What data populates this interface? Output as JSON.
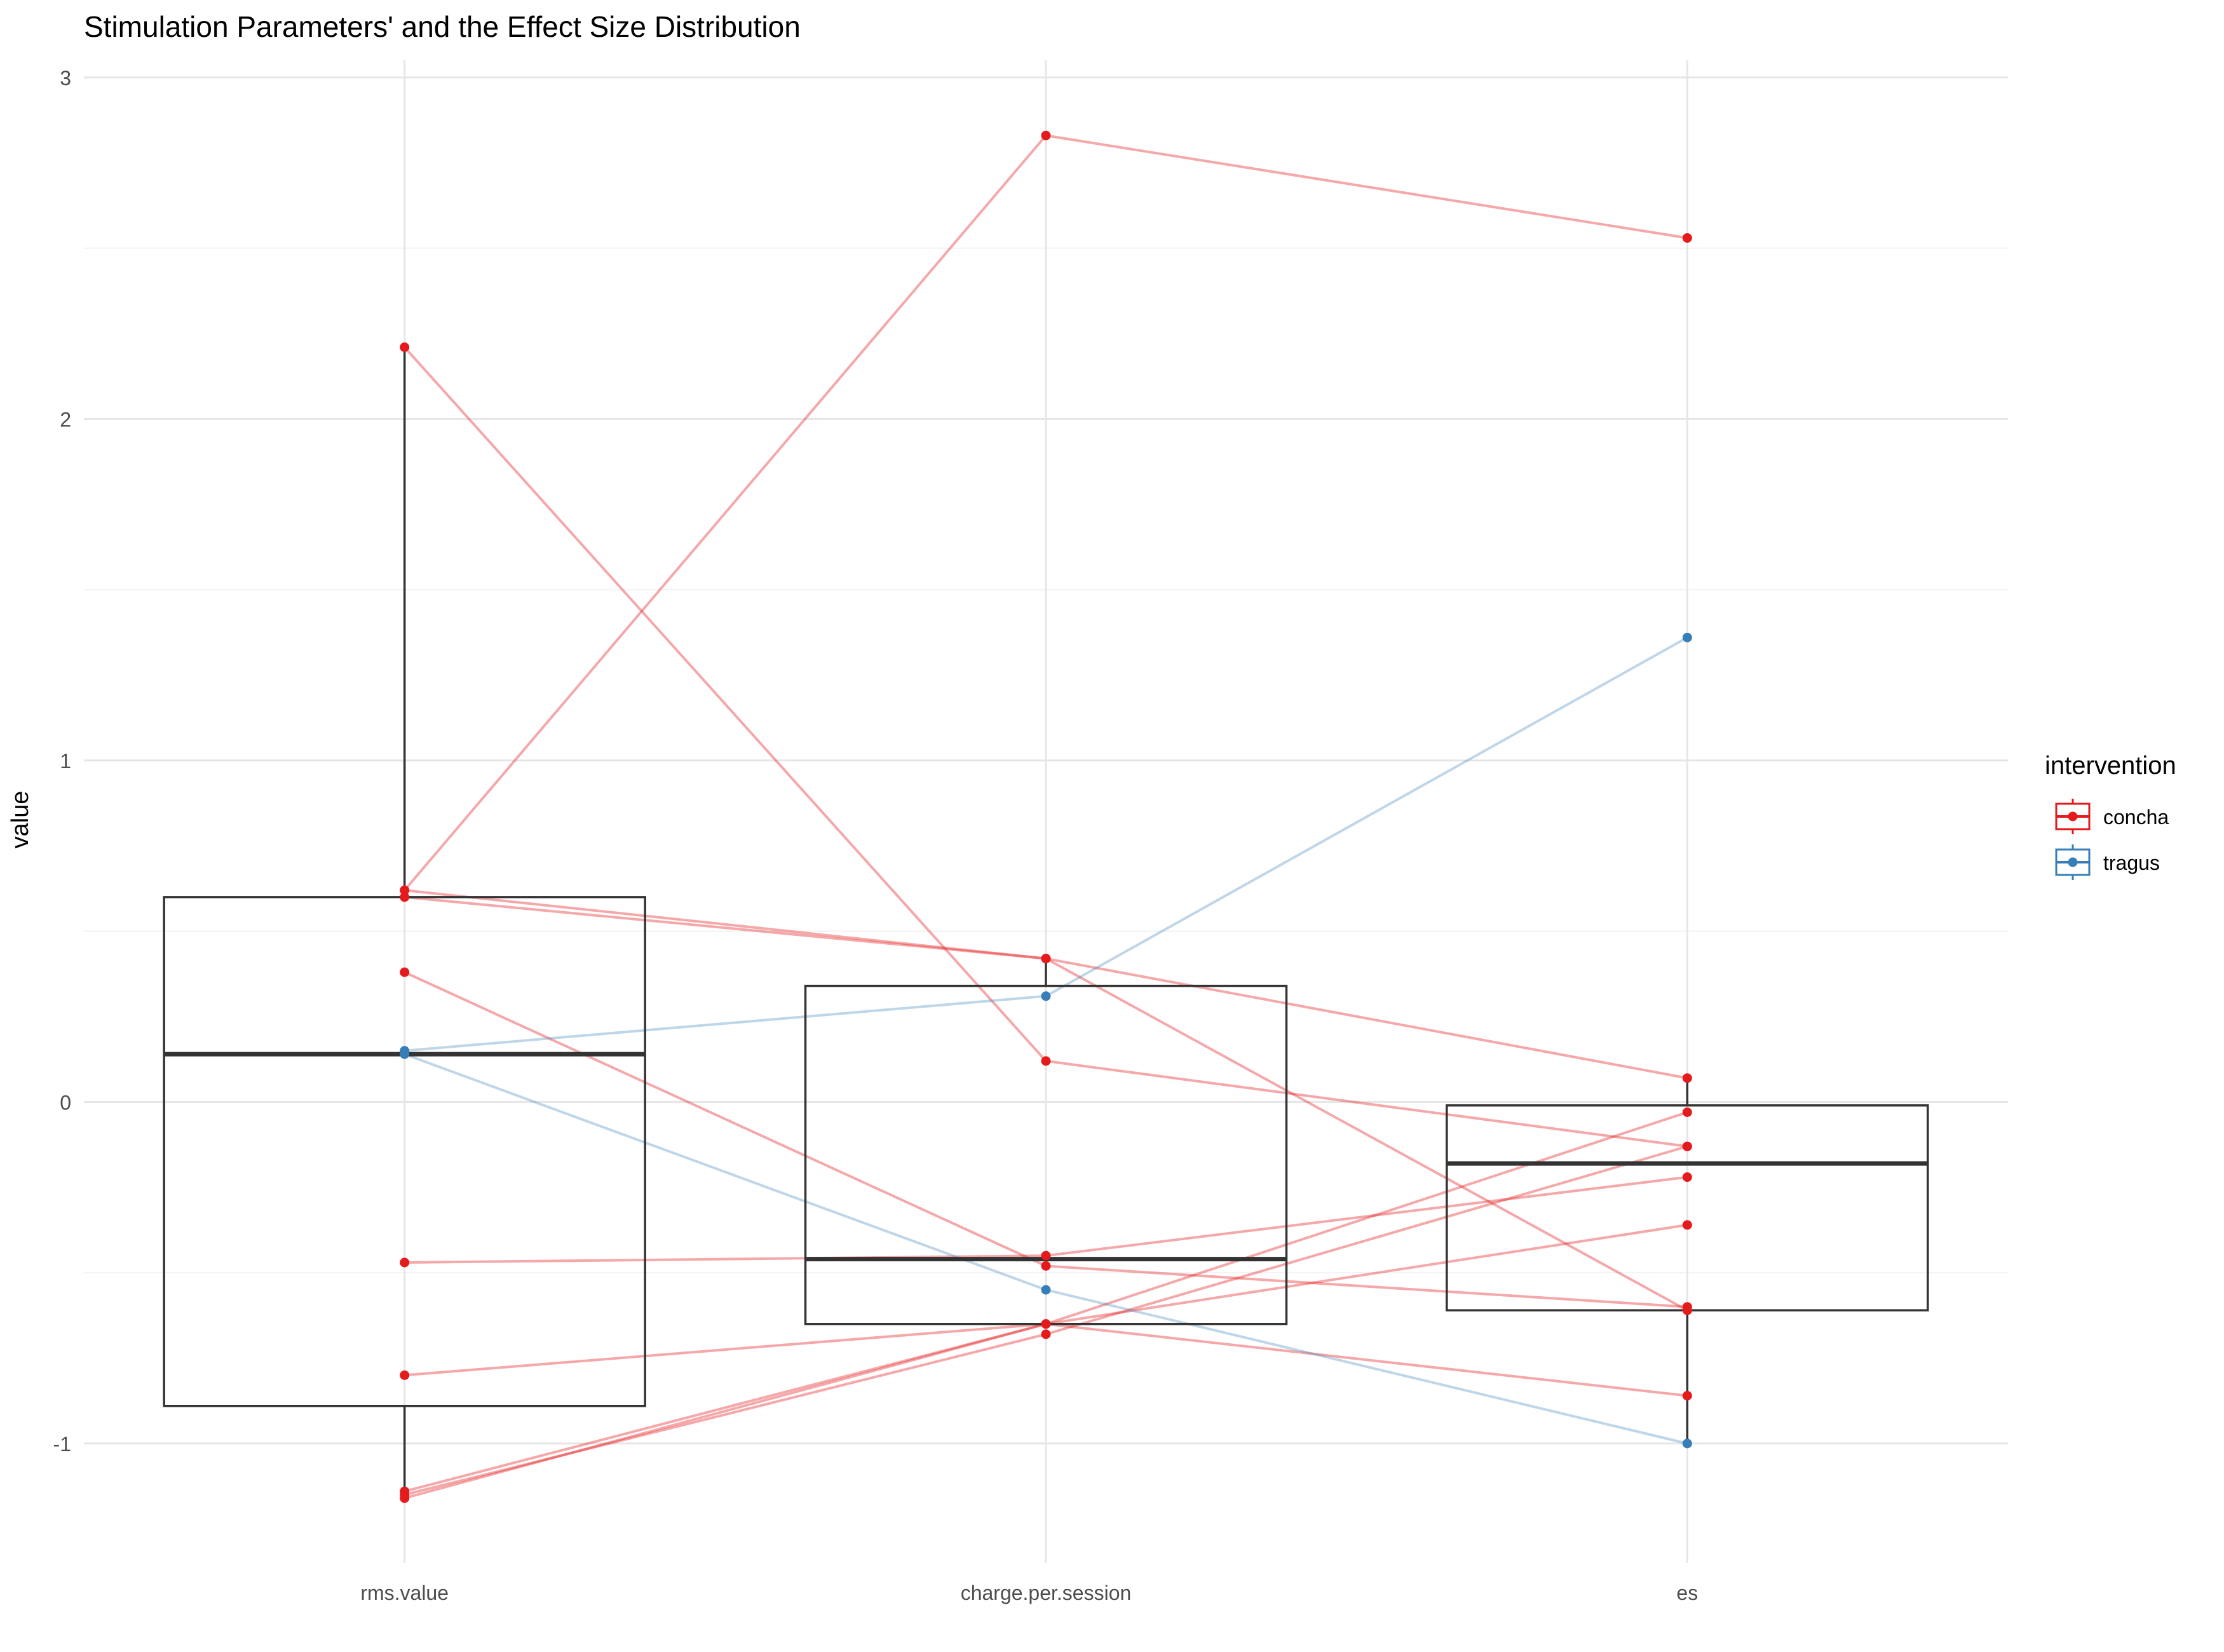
{
  "chart_data": {
    "type": "box",
    "title": "Stimulation Parameters' and the Effect Size Distribution",
    "xlabel": "",
    "ylabel": "value",
    "categories": [
      "rms.value",
      "charge.per.session",
      "es"
    ],
    "ylim": [
      -1.35,
      3.05
    ],
    "yticks": [
      -1,
      0,
      1,
      2,
      3
    ],
    "grid": true,
    "legend": {
      "title": "intervention",
      "position": "right",
      "entries": [
        {
          "name": "concha",
          "color": "#e41a1c"
        },
        {
          "name": "tragus",
          "color": "#377eb8"
        }
      ]
    },
    "boxplots": [
      {
        "category": "rms.value",
        "q1": -0.89,
        "median": 0.14,
        "q3": 0.6,
        "whisker_low": -1.15,
        "whisker_high": 2.21
      },
      {
        "category": "charge.per.session",
        "q1": -0.65,
        "median": -0.46,
        "q3": 0.34,
        "whisker_low": -0.65,
        "whisker_high": 0.42
      },
      {
        "category": "es",
        "q1": -0.61,
        "median": -0.18,
        "q3": -0.01,
        "whisker_low": -1.0,
        "whisker_high": 0.07
      }
    ],
    "series": [
      {
        "intervention": "concha",
        "values": [
          0.62,
          2.83,
          2.53
        ]
      },
      {
        "intervention": "concha",
        "values": [
          2.21,
          0.12,
          -0.13
        ]
      },
      {
        "intervention": "concha",
        "values": [
          0.6,
          0.42,
          0.07
        ]
      },
      {
        "intervention": "concha",
        "values": [
          0.62,
          0.42,
          -0.61
        ]
      },
      {
        "intervention": "concha",
        "values": [
          0.38,
          -0.48,
          -0.6
        ]
      },
      {
        "intervention": "concha",
        "values": [
          -0.47,
          -0.45,
          -0.22
        ]
      },
      {
        "intervention": "concha",
        "values": [
          -0.8,
          -0.65,
          -0.36
        ]
      },
      {
        "intervention": "concha",
        "values": [
          -1.14,
          -0.65,
          -0.03
        ]
      },
      {
        "intervention": "concha",
        "values": [
          -1.15,
          -0.68,
          -0.13
        ]
      },
      {
        "intervention": "concha",
        "values": [
          -1.16,
          -0.65,
          -0.86
        ]
      },
      {
        "intervention": "tragus",
        "values": [
          0.15,
          0.31,
          1.36
        ]
      },
      {
        "intervention": "tragus",
        "values": [
          0.14,
          -0.55,
          -1.0
        ]
      }
    ]
  }
}
